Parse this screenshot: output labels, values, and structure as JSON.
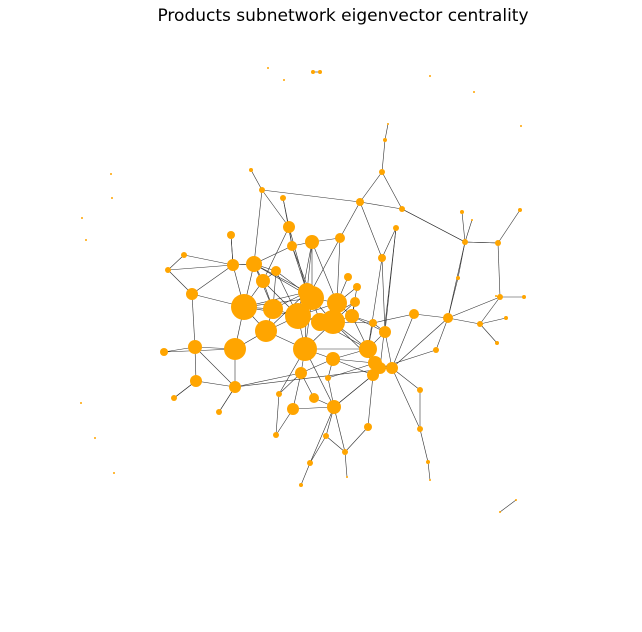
{
  "title": "Products subnetwork eigenvector centrality",
  "colors": {
    "node": "#ffa500",
    "edge": "#333333",
    "background": "#ffffff"
  },
  "chart_data": {
    "type": "network",
    "title": "Products subnetwork eigenvector centrality",
    "node_color": "#ffa500",
    "edge_color": "#333333",
    "node_size_encodes": "eigenvector centrality"
  }
}
